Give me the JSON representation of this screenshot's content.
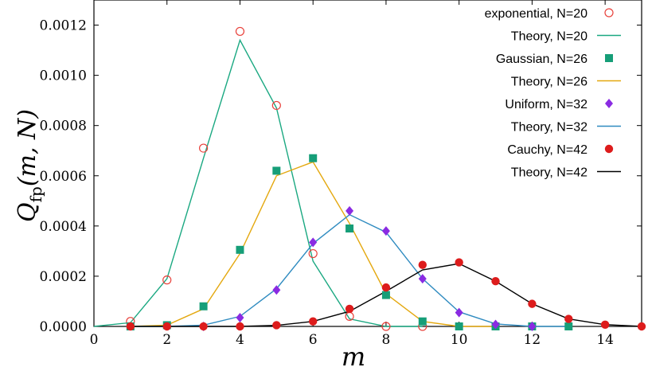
{
  "chart_data": {
    "type": "line",
    "title": "",
    "xlabel": "m",
    "ylabel_main": "Q",
    "ylabel_sub": "fp",
    "ylabel_args": "(m, N)",
    "xlim": [
      0,
      15
    ],
    "ylim": [
      0,
      0.0013
    ],
    "x_ticks": [
      0,
      2,
      4,
      6,
      8,
      10,
      12,
      14
    ],
    "x_tick_labels": [
      "0",
      "2",
      "4",
      "6",
      "8",
      "10",
      "12",
      "14"
    ],
    "y_ticks": [
      0,
      0.0002,
      0.0004,
      0.0006,
      0.0008,
      0.001,
      0.0012
    ],
    "y_tick_labels": [
      "0.0000",
      "0.0002",
      "0.0004",
      "0.0006",
      "0.0008",
      "0.0010",
      "0.0012"
    ],
    "grid": false,
    "legend_position": "top-right",
    "series": [
      {
        "name": "exponential, N=20",
        "kind": "markers",
        "marker": "open-circle",
        "color": "#e8403a",
        "points": [
          [
            1,
            2e-05
          ],
          [
            2,
            0.000185
          ],
          [
            3,
            0.00071
          ],
          [
            4,
            0.001175
          ],
          [
            5,
            0.00088
          ],
          [
            6,
            0.00029
          ],
          [
            7,
            4e-05
          ],
          [
            8,
            0.0
          ],
          [
            9,
            0.0
          ]
        ]
      },
      {
        "name": "Theory, N=20",
        "kind": "line",
        "color": "#1aa881",
        "points": [
          [
            0,
            0.0
          ],
          [
            1,
            1.5e-05
          ],
          [
            2,
            0.00019
          ],
          [
            3,
            0.00067
          ],
          [
            4,
            0.00114
          ],
          [
            5,
            0.00087
          ],
          [
            6,
            0.00026
          ],
          [
            7,
            3e-05
          ],
          [
            8,
            0.0
          ],
          [
            9,
            0.0
          ]
        ]
      },
      {
        "name": "Gaussian, N=26",
        "kind": "markers",
        "marker": "square",
        "color": "#169e78",
        "points": [
          [
            1,
            0.0
          ],
          [
            2,
            5e-06
          ],
          [
            3,
            8e-05
          ],
          [
            4,
            0.000305
          ],
          [
            5,
            0.00062
          ],
          [
            6,
            0.00067
          ],
          [
            7,
            0.00039
          ],
          [
            8,
            0.000125
          ],
          [
            9,
            2e-05
          ],
          [
            10,
            0.0
          ],
          [
            11,
            0.0
          ],
          [
            12,
            0.0
          ],
          [
            13,
            0.0
          ]
        ]
      },
      {
        "name": "Theory, N=26",
        "kind": "line",
        "color": "#e4a80f",
        "points": [
          [
            1,
            0.0
          ],
          [
            2,
            5e-06
          ],
          [
            3,
            7e-05
          ],
          [
            4,
            0.00029
          ],
          [
            5,
            0.0006
          ],
          [
            6,
            0.000655
          ],
          [
            7,
            0.00041
          ],
          [
            8,
            0.00013
          ],
          [
            9,
            2e-05
          ],
          [
            10,
            0.0
          ],
          [
            11,
            0.0
          ]
        ]
      },
      {
        "name": "Uniform, N=32",
        "kind": "markers",
        "marker": "diamond",
        "color": "#8a2be2",
        "points": [
          [
            3,
            0.0
          ],
          [
            4,
            3.5e-05
          ],
          [
            5,
            0.000145
          ],
          [
            6,
            0.000335
          ],
          [
            7,
            0.00046
          ],
          [
            8,
            0.00038
          ],
          [
            9,
            0.00019
          ],
          [
            10,
            5.5e-05
          ],
          [
            11,
            8e-06
          ],
          [
            12,
            0.0
          ]
        ]
      },
      {
        "name": "Theory, N=32",
        "kind": "line",
        "color": "#2f8bc0",
        "points": [
          [
            1,
            0.0
          ],
          [
            2,
            0.0
          ],
          [
            3,
            5e-06
          ],
          [
            4,
            4e-05
          ],
          [
            5,
            0.00015
          ],
          [
            6,
            0.00033
          ],
          [
            7,
            0.000445
          ],
          [
            8,
            0.000375
          ],
          [
            9,
            0.00019
          ],
          [
            10,
            5.8e-05
          ],
          [
            11,
            1e-05
          ],
          [
            12,
            0.0
          ],
          [
            13,
            0.0
          ]
        ]
      },
      {
        "name": "Cauchy, N=42",
        "kind": "markers",
        "marker": "filled-circle",
        "color": "#dd1c1c",
        "points": [
          [
            1,
            0.0
          ],
          [
            2,
            0.0
          ],
          [
            3,
            0.0
          ],
          [
            4,
            0.0
          ],
          [
            5,
            5e-06
          ],
          [
            6,
            2e-05
          ],
          [
            7,
            7e-05
          ],
          [
            8,
            0.000155
          ],
          [
            9,
            0.000245
          ],
          [
            10,
            0.000255
          ],
          [
            11,
            0.00018
          ],
          [
            12,
            9e-05
          ],
          [
            13,
            3e-05
          ],
          [
            14,
            7e-06
          ],
          [
            15,
            0.0
          ]
        ]
      },
      {
        "name": "Theory, N=42",
        "kind": "line",
        "color": "#000000",
        "points": [
          [
            1,
            0.0
          ],
          [
            2,
            0.0
          ],
          [
            3,
            0.0
          ],
          [
            4,
            0.0
          ],
          [
            5,
            4e-06
          ],
          [
            6,
            2e-05
          ],
          [
            7,
            6e-05
          ],
          [
            8,
            0.00014
          ],
          [
            9,
            0.000225
          ],
          [
            10,
            0.00025
          ],
          [
            11,
            0.00018
          ],
          [
            12,
            9e-05
          ],
          [
            13,
            3e-05
          ],
          [
            14,
            7e-06
          ],
          [
            15,
            0.0
          ]
        ]
      }
    ]
  }
}
